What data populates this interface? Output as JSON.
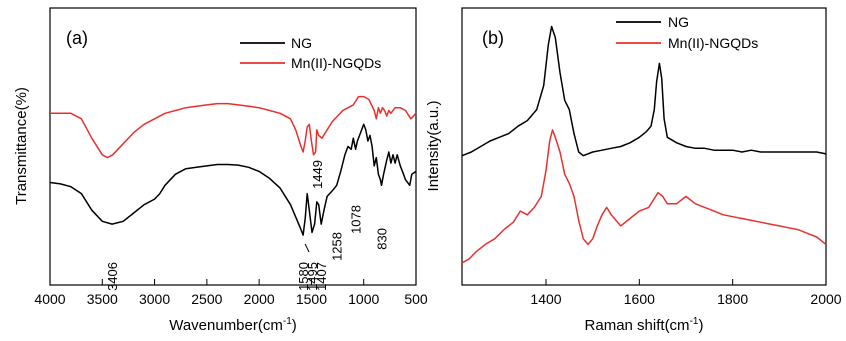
{
  "colors": {
    "NG": "#000000",
    "Mn(II)-NGQDs": "#e8312f"
  },
  "chart_data": [
    {
      "type": "line",
      "panel_label": "(a)",
      "xlabel": "Wavenumber(cm",
      "xlabel_sup": "-1",
      "xlabel_end": ")",
      "ylabel": "Transmittance(%)",
      "xlim": [
        4000,
        500
      ],
      "xticks": [
        "4000",
        "3500",
        "3000",
        "2500",
        "2000",
        "1500",
        "1000",
        "500"
      ],
      "y_tick_labels": false,
      "legend": [
        "NG",
        "Mn(II)-NGQDs"
      ],
      "legend_position": "top-right",
      "series": [
        {
          "name": "Mn(II)-NGQDs",
          "color": "#e8312f",
          "points": [
            [
              4000,
              62
            ],
            [
              3900,
              62
            ],
            [
              3800,
              62
            ],
            [
              3700,
              60
            ],
            [
              3600,
              53
            ],
            [
              3500,
              47
            ],
            [
              3450,
              46
            ],
            [
              3400,
              47
            ],
            [
              3300,
              51
            ],
            [
              3200,
              55
            ],
            [
              3100,
              58
            ],
            [
              3000,
              60
            ],
            [
              2900,
              62
            ],
            [
              2800,
              63
            ],
            [
              2700,
              64
            ],
            [
              2600,
              64.5
            ],
            [
              2500,
              65
            ],
            [
              2400,
              65.5
            ],
            [
              2300,
              65.5
            ],
            [
              2200,
              65
            ],
            [
              2100,
              64.5
            ],
            [
              2000,
              64
            ],
            [
              1900,
              63
            ],
            [
              1800,
              62
            ],
            [
              1700,
              60
            ],
            [
              1650,
              56
            ],
            [
              1600,
              50
            ],
            [
              1580,
              48
            ],
            [
              1560,
              52
            ],
            [
              1540,
              57
            ],
            [
              1520,
              58
            ],
            [
              1500,
              52
            ],
            [
              1480,
              47
            ],
            [
              1460,
              48
            ],
            [
              1449,
              56
            ],
            [
              1430,
              54
            ],
            [
              1400,
              53
            ],
            [
              1350,
              56
            ],
            [
              1300,
              59
            ],
            [
              1250,
              61
            ],
            [
              1200,
              63
            ],
            [
              1150,
              64
            ],
            [
              1100,
              65
            ],
            [
              1050,
              68
            ],
            [
              1000,
              68
            ],
            [
              950,
              67
            ],
            [
              900,
              63
            ],
            [
              880,
              60
            ],
            [
              860,
              64
            ],
            [
              840,
              62
            ],
            [
              820,
              64
            ],
            [
              800,
              63
            ],
            [
              780,
              61
            ],
            [
              760,
              63
            ],
            [
              740,
              62
            ],
            [
              700,
              64
            ],
            [
              650,
              64
            ],
            [
              600,
              63
            ],
            [
              550,
              60
            ],
            [
              500,
              62
            ]
          ]
        },
        {
          "name": "NG",
          "color": "#000000",
          "points": [
            [
              4000,
              37
            ],
            [
              3900,
              36.5
            ],
            [
              3800,
              35.5
            ],
            [
              3700,
              33
            ],
            [
              3600,
              27
            ],
            [
              3500,
              23
            ],
            [
              3406,
              22
            ],
            [
              3300,
              23
            ],
            [
              3200,
              26
            ],
            [
              3100,
              29
            ],
            [
              3000,
              31
            ],
            [
              2950,
              33
            ],
            [
              2900,
              36
            ],
            [
              2850,
              38
            ],
            [
              2800,
              40
            ],
            [
              2700,
              42
            ],
            [
              2600,
              42.5
            ],
            [
              2500,
              43
            ],
            [
              2400,
              43.5
            ],
            [
              2300,
              43.5
            ],
            [
              2200,
              43.3
            ],
            [
              2100,
              42.5
            ],
            [
              2000,
              41
            ],
            [
              1900,
              38.5
            ],
            [
              1800,
              35
            ],
            [
              1700,
              29
            ],
            [
              1600,
              20
            ],
            [
              1580,
              18
            ],
            [
              1560,
              24
            ],
            [
              1540,
              33
            ],
            [
              1520,
              27
            ],
            [
              1495,
              19
            ],
            [
              1470,
              22
            ],
            [
              1449,
              30
            ],
            [
              1430,
              29
            ],
            [
              1407,
              22
            ],
            [
              1380,
              27
            ],
            [
              1350,
              32
            ],
            [
              1300,
              34
            ],
            [
              1258,
              36
            ],
            [
              1220,
              41
            ],
            [
              1180,
              47
            ],
            [
              1150,
              50
            ],
            [
              1120,
              49
            ],
            [
              1100,
              53
            ],
            [
              1078,
              49
            ],
            [
              1060,
              52
            ],
            [
              1030,
              55
            ],
            [
              1000,
              58
            ],
            [
              980,
              56
            ],
            [
              960,
              52
            ],
            [
              940,
              54
            ],
            [
              920,
              50
            ],
            [
              900,
              43
            ],
            [
              880,
              46
            ],
            [
              860,
              40
            ],
            [
              840,
              38
            ],
            [
              830,
              36
            ],
            [
              810,
              40
            ],
            [
              780,
              45
            ],
            [
              760,
              48
            ],
            [
              740,
              44
            ],
            [
              720,
              47
            ],
            [
              700,
              44
            ],
            [
              680,
              47
            ],
            [
              650,
              43
            ],
            [
              620,
              40
            ],
            [
              600,
              38
            ],
            [
              560,
              36
            ],
            [
              540,
              40
            ],
            [
              500,
              41
            ]
          ]
        }
      ],
      "peak_labels": [
        "3406",
        "1580",
        "1495",
        "1407",
        "1449",
        "1258",
        "1078",
        "830"
      ]
    },
    {
      "type": "line",
      "panel_label": "(b)",
      "xlabel": "Raman shift(cm",
      "xlabel_sup": "-1",
      "xlabel_end": ")",
      "ylabel": "Intensity(a.u.)",
      "xlim": [
        1220,
        2000
      ],
      "xticks": [
        "1400",
        "1600",
        "1800",
        "2000"
      ],
      "y_tick_labels": false,
      "legend": [
        "NG",
        "Mn(II)-NGQDs"
      ],
      "legend_position": "top-right",
      "series": [
        {
          "name": "NG",
          "color": "#000000",
          "points": [
            [
              1220,
              70
            ],
            [
              1240,
              72
            ],
            [
              1260,
              75
            ],
            [
              1280,
              78
            ],
            [
              1300,
              80
            ],
            [
              1320,
              82
            ],
            [
              1340,
              86
            ],
            [
              1360,
              89
            ],
            [
              1380,
              95
            ],
            [
              1395,
              108
            ],
            [
              1405,
              130
            ],
            [
              1412,
              140
            ],
            [
              1420,
              134
            ],
            [
              1430,
              115
            ],
            [
              1440,
              100
            ],
            [
              1450,
              95
            ],
            [
              1460,
              82
            ],
            [
              1470,
              72
            ],
            [
              1480,
              70
            ],
            [
              1500,
              72
            ],
            [
              1520,
              73
            ],
            [
              1540,
              74
            ],
            [
              1560,
              75
            ],
            [
              1580,
              77
            ],
            [
              1600,
              80
            ],
            [
              1615,
              83
            ],
            [
              1625,
              86
            ],
            [
              1632,
              95
            ],
            [
              1637,
              110
            ],
            [
              1643,
              120
            ],
            [
              1648,
              112
            ],
            [
              1653,
              90
            ],
            [
              1660,
              80
            ],
            [
              1680,
              77
            ],
            [
              1700,
              75
            ],
            [
              1720,
              74
            ],
            [
              1740,
              74
            ],
            [
              1760,
              73
            ],
            [
              1780,
              73
            ],
            [
              1800,
              73
            ],
            [
              1820,
              72
            ],
            [
              1840,
              73
            ],
            [
              1860,
              72
            ],
            [
              1880,
              72
            ],
            [
              1900,
              72
            ],
            [
              1920,
              72
            ],
            [
              1940,
              72
            ],
            [
              1960,
              72
            ],
            [
              1980,
              72
            ],
            [
              2000,
              71
            ]
          ]
        },
        {
          "name": "Mn(II)-NGQDs",
          "color": "#e8312f",
          "points": [
            [
              1220,
              12
            ],
            [
              1235,
              14
            ],
            [
              1250,
              18
            ],
            [
              1270,
              22
            ],
            [
              1290,
              25
            ],
            [
              1310,
              30
            ],
            [
              1330,
              34
            ],
            [
              1345,
              40
            ],
            [
              1360,
              38
            ],
            [
              1375,
              42
            ],
            [
              1390,
              48
            ],
            [
              1400,
              62
            ],
            [
              1408,
              78
            ],
            [
              1414,
              84
            ],
            [
              1420,
              80
            ],
            [
              1430,
              72
            ],
            [
              1440,
              60
            ],
            [
              1450,
              55
            ],
            [
              1460,
              48
            ],
            [
              1470,
              35
            ],
            [
              1480,
              25
            ],
            [
              1490,
              22
            ],
            [
              1500,
              25
            ],
            [
              1510,
              32
            ],
            [
              1520,
              38
            ],
            [
              1530,
              42
            ],
            [
              1540,
              38
            ],
            [
              1550,
              35
            ],
            [
              1560,
              32
            ],
            [
              1580,
              36
            ],
            [
              1600,
              40
            ],
            [
              1620,
              42
            ],
            [
              1640,
              50
            ],
            [
              1650,
              48
            ],
            [
              1660,
              44
            ],
            [
              1680,
              44
            ],
            [
              1700,
              48
            ],
            [
              1710,
              46
            ],
            [
              1720,
              44
            ],
            [
              1740,
              42
            ],
            [
              1760,
              40
            ],
            [
              1780,
              38
            ],
            [
              1800,
              37
            ],
            [
              1820,
              36
            ],
            [
              1840,
              35
            ],
            [
              1860,
              34
            ],
            [
              1880,
              33
            ],
            [
              1900,
              32
            ],
            [
              1920,
              31
            ],
            [
              1940,
              30
            ],
            [
              1960,
              28
            ],
            [
              1980,
              26
            ],
            [
              2000,
              22
            ]
          ]
        }
      ]
    }
  ]
}
